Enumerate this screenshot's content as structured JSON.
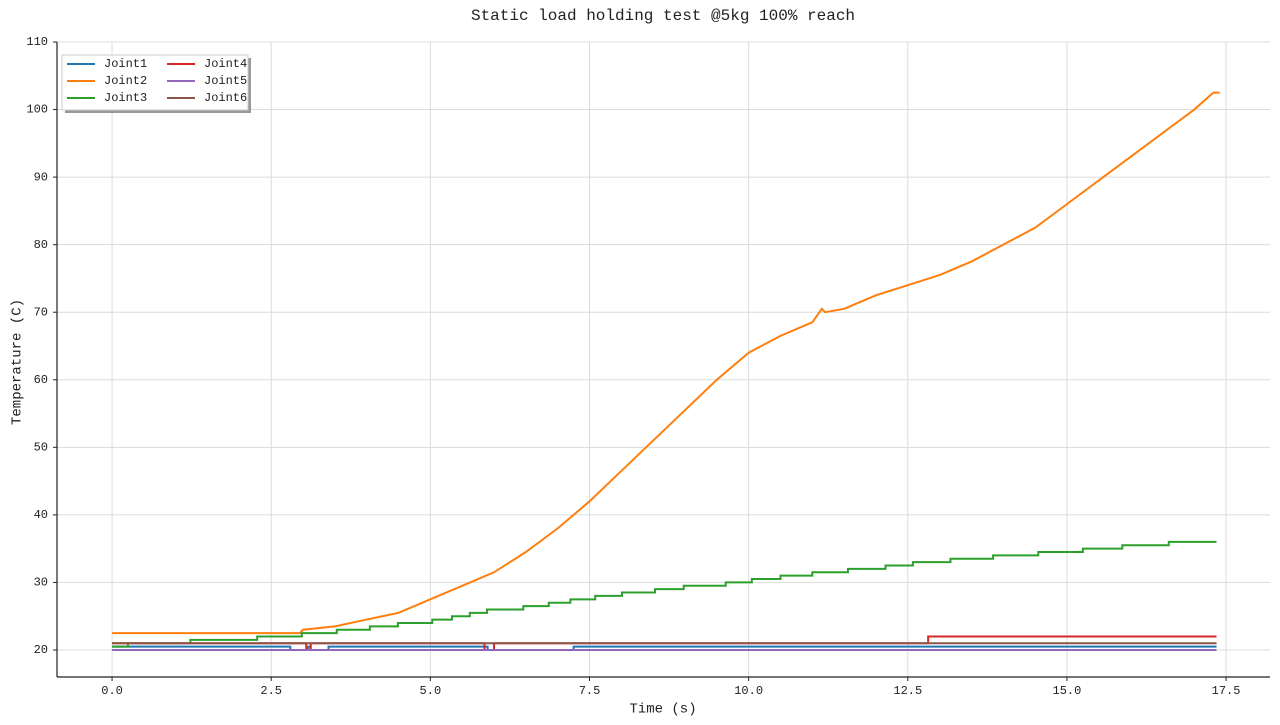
{
  "chart_data": {
    "type": "line",
    "title": "Static load holding test @5kg 100% reach",
    "xlabel": "Time (s)",
    "ylabel": "Temperature (C)",
    "xlim": [
      -0.865,
      18.19
    ],
    "ylim": [
      16,
      110
    ],
    "xticks": [
      {
        "value": 0,
        "label": "0.0"
      },
      2.5,
      {
        "value": 5,
        "label": "5.0"
      },
      7.5,
      {
        "value": 10,
        "label": "10.0"
      },
      12.5,
      {
        "value": 15,
        "label": "15.0"
      },
      17.5
    ],
    "yticks": [
      20,
      30,
      40,
      50,
      60,
      70,
      80,
      90,
      100,
      110
    ],
    "grid": true,
    "legend": "upper left",
    "legend_columns": 2,
    "series": [
      {
        "name": "Joint1",
        "color": "#1f77b4",
        "step": true,
        "x": [
          0,
          2.8,
          3.08,
          3.12,
          3.4,
          5.9,
          7.25,
          17.35
        ],
        "values": [
          20.5,
          20,
          20.5,
          20,
          20.5,
          20,
          20.5,
          20.5
        ]
      },
      {
        "name": "Joint2",
        "color": "#ff7f0e",
        "step": false,
        "x": [
          0,
          2.95,
          3.0,
          3.5,
          4.0,
          4.5,
          5.0,
          5.5,
          6.0,
          6.5,
          7.0,
          7.5,
          8.0,
          8.5,
          9.0,
          9.5,
          10.0,
          10.5,
          11.0,
          11.15,
          11.2,
          11.5,
          12.0,
          12.5,
          13.0,
          13.5,
          14.0,
          14.5,
          15.0,
          15.5,
          16.0,
          16.5,
          17.0,
          17.3,
          17.4
        ],
        "values": [
          22.5,
          22.5,
          23,
          23.5,
          24.5,
          25.5,
          27.5,
          29.5,
          31.5,
          34.5,
          38,
          42,
          46.5,
          51,
          55.5,
          60,
          64,
          66.5,
          68.5,
          70.5,
          70,
          70.5,
          72.5,
          74,
          75.5,
          77.5,
          80,
          82.5,
          86,
          89.5,
          93,
          96.5,
          100,
          102.5,
          102.5
        ]
      },
      {
        "name": "Joint3",
        "color": "#2ca02c",
        "step": true,
        "x": [
          0,
          0.25,
          1.23,
          2.28,
          2.98,
          3.53,
          4.05,
          4.49,
          5.03,
          5.34,
          5.62,
          5.89,
          6.46,
          6.86,
          7.2,
          7.59,
          8.01,
          8.53,
          8.98,
          9.64,
          10.05,
          10.5,
          11.0,
          11.56,
          12.15,
          12.58,
          13.17,
          13.84,
          14.55,
          15.25,
          15.87,
          16.6,
          17.35
        ],
        "values": [
          20.5,
          21,
          21.5,
          22,
          22.5,
          23,
          23.5,
          24,
          24.5,
          25,
          25.5,
          26,
          26.5,
          27,
          27.5,
          28,
          28.5,
          29,
          29.5,
          30,
          30.5,
          31,
          31.5,
          32,
          32.5,
          33,
          33.5,
          34,
          34.5,
          35,
          35.5,
          36,
          36
        ]
      },
      {
        "name": "Joint4",
        "color": "#d62728",
        "step": true,
        "x": [
          0,
          3.05,
          3.12,
          5.85,
          6.0,
          12.82,
          17.35
        ],
        "values": [
          21,
          20,
          21,
          20,
          21,
          22,
          22
        ]
      },
      {
        "name": "Joint5",
        "color": "#9467bd",
        "step": true,
        "x": [
          0,
          17.35
        ],
        "values": [
          20,
          20
        ]
      },
      {
        "name": "Joint6",
        "color": "#8c564b",
        "step": true,
        "x": [
          0,
          17.35
        ],
        "values": [
          21,
          21
        ]
      }
    ]
  }
}
